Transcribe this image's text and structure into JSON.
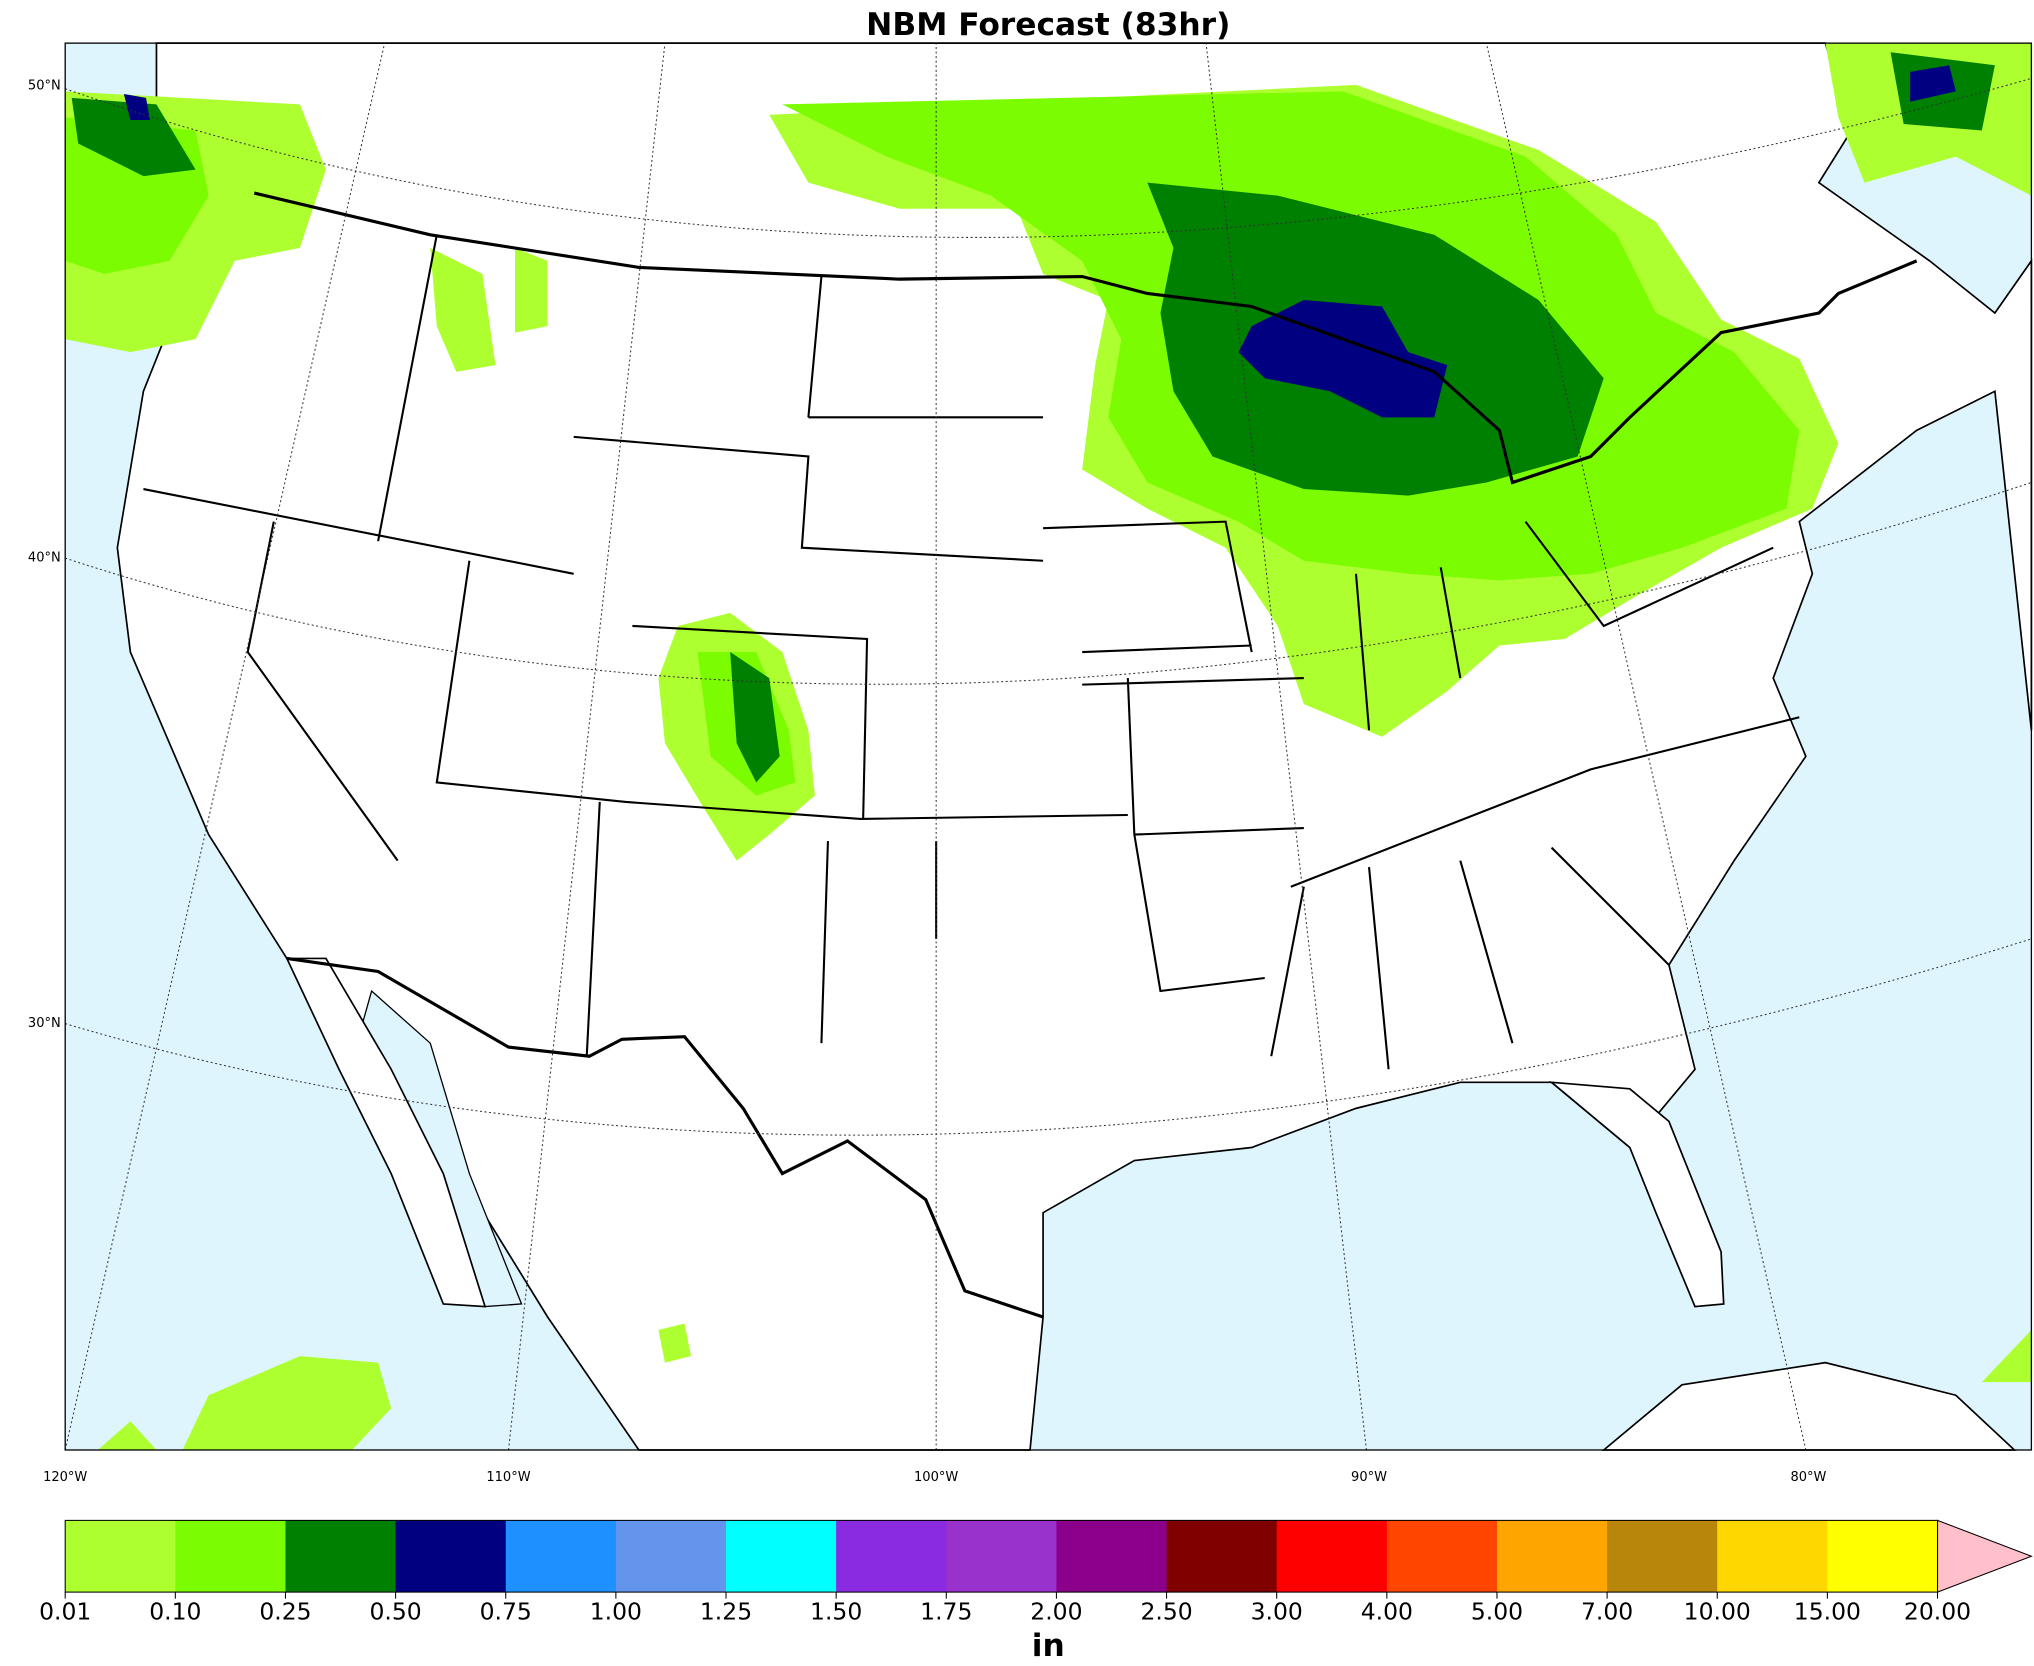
{
  "title": "NBM Forecast (83hr)",
  "lat_labels": [
    "50°N",
    "40°N",
    "30°N"
  ],
  "lon_labels": [
    "120°W",
    "110°W",
    "100°W",
    "90°W",
    "80°W"
  ],
  "colorbar": {
    "label": "in",
    "ticks": [
      {
        "value": 0.01,
        "label": "0.01"
      },
      {
        "value": 0.1,
        "label": "0.10"
      },
      {
        "value": 0.25,
        "label": "0.25"
      },
      {
        "value": 0.5,
        "label": "0.50"
      },
      {
        "value": 0.75,
        "label": "0.75"
      },
      {
        "value": 1,
        "label": "1.00"
      },
      {
        "value": 1.25,
        "label": "1.25"
      },
      {
        "value": 1.5,
        "label": "1.50"
      },
      {
        "value": 1.75,
        "label": "1.75"
      },
      {
        "value": 2,
        "label": "2.00"
      },
      {
        "value": 2.5,
        "label": "2.50"
      },
      {
        "value": 3,
        "label": "3.00"
      },
      {
        "value": 4,
        "label": "4.00"
      },
      {
        "value": 5,
        "label": "5.00"
      },
      {
        "value": 7,
        "label": "7.00"
      },
      {
        "value": 10,
        "label": "10.00"
      },
      {
        "value": 15,
        "label": "15.00"
      },
      {
        "value": 20,
        "label": "20.00"
      }
    ],
    "colors": [
      "#adff2f",
      "#7cfc00",
      "#008000",
      "#000080",
      "#1e90ff",
      "#6495ed",
      "#00ffff",
      "#8a2be2",
      "#9932cc",
      "#8b008b",
      "#800000",
      "#ff0000",
      "#ff4500",
      "#ffa500",
      "#b8860b",
      "#ffd700",
      "#ffff00"
    ],
    "extend_color": "#ffc0cb"
  }
}
